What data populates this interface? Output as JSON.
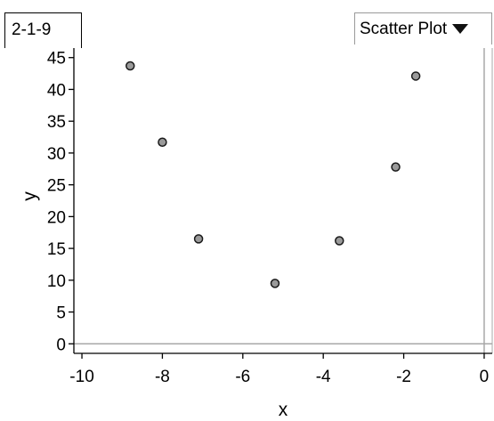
{
  "tab": {
    "label": "2-1-9"
  },
  "plot_selector": {
    "selected": "Scatter Plot",
    "icon": "chevron-down-icon"
  },
  "colors": {
    "point_fill": "#9a9a9a",
    "point_stroke": "#1a1a1a",
    "axis": "#000000",
    "reference_line": "#a8a8a8"
  },
  "chart_data": {
    "type": "scatter",
    "xlabel": "x",
    "ylabel": "y",
    "xlim": [
      -10.2,
      0.2
    ],
    "ylim": [
      -1.5,
      46.5
    ],
    "x_ticks": [
      -10,
      -8,
      -6,
      -4,
      -2,
      0
    ],
    "y_ticks": [
      0,
      5,
      10,
      15,
      20,
      25,
      30,
      35,
      40,
      45
    ],
    "grid": false,
    "points": [
      {
        "x": -8.8,
        "y": 43.7
      },
      {
        "x": -8.0,
        "y": 31.7
      },
      {
        "x": -7.1,
        "y": 16.5
      },
      {
        "x": -5.2,
        "y": 9.5
      },
      {
        "x": -3.6,
        "y": 16.2
      },
      {
        "x": -2.2,
        "y": 27.8
      },
      {
        "x": -1.7,
        "y": 42.1
      }
    ]
  }
}
